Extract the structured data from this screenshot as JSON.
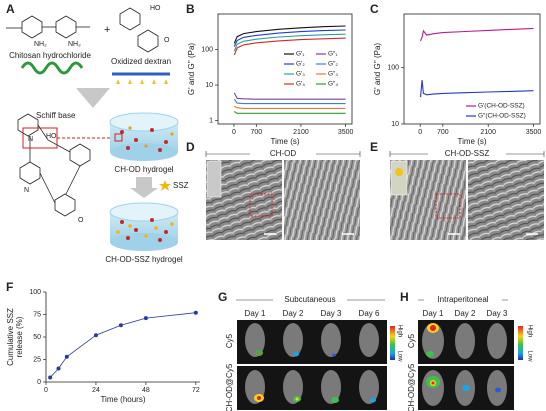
{
  "panel_labels": [
    "A",
    "B",
    "C",
    "D",
    "E",
    "F",
    "G",
    "H"
  ],
  "panel_a": {
    "chitosan": "Chitosan hydrochloride",
    "plus": "+",
    "dextran": "Oxidized dextran",
    "schiff_base": "Schiff base",
    "hydrogel": "CH-OD hydrogel",
    "drug": "SSZ",
    "drug_hydrogel": "CH-OD-SSZ hydrogel",
    "atoms": [
      "NH₂",
      "NH₂",
      "HO",
      "O",
      "N",
      "HO",
      "N",
      "O"
    ]
  },
  "chart_data": [
    {
      "type": "line",
      "ylabel": "G' and G'' (Pa)",
      "xlabel": "Time (s)",
      "log_y": true,
      "frame": true,
      "legend": "center right",
      "x": [
        10,
        100,
        300,
        700,
        1400,
        2100,
        2800,
        3500
      ],
      "xlim": [
        -500,
        3700
      ],
      "xticks": [
        0,
        700,
        2100,
        3500
      ],
      "ylim": [
        0.8,
        1000
      ],
      "yticks": [
        1,
        10,
        100
      ],
      "series": [
        {
          "name": "G′₁",
          "color": "#111111",
          "values": [
            150,
            230,
            280,
            320,
            370,
            410,
            440,
            460
          ]
        },
        {
          "name": "G′₂",
          "color": "#1f3fd1",
          "values": [
            120,
            180,
            220,
            250,
            290,
            320,
            340,
            355
          ]
        },
        {
          "name": "G′₃",
          "color": "#2aa198",
          "values": [
            90,
            140,
            170,
            195,
            225,
            245,
            260,
            270
          ]
        },
        {
          "name": "G′₄",
          "color": "#d62728",
          "values": [
            70,
            110,
            135,
            155,
            175,
            190,
            200,
            210
          ]
        },
        {
          "name": "G″₁",
          "color": "#7b3fa0",
          "values": [
            6,
            4.2,
            4.1,
            4,
            4,
            4,
            4,
            4
          ]
        },
        {
          "name": "G″₂",
          "color": "#3b7dd8",
          "values": [
            4,
            3.1,
            3,
            3,
            3,
            3,
            3,
            3
          ]
        },
        {
          "name": "G″₃",
          "color": "#e07b39",
          "values": [
            2.5,
            2.3,
            2.2,
            2.2,
            2.2,
            2.2,
            2.2,
            2.2
          ]
        },
        {
          "name": "G″₄",
          "color": "#2ca02c",
          "values": [
            1.8,
            1.6,
            1.6,
            1.6,
            1.6,
            1.6,
            1.6,
            1.6
          ]
        }
      ]
    },
    {
      "type": "line",
      "ylabel": "G' and G'' (Pa)",
      "xlabel": "Time (s)",
      "log_y": true,
      "frame": true,
      "legend": "lower right",
      "x": [
        10,
        60,
        100,
        200,
        400,
        700,
        1400,
        2100,
        2800,
        3500
      ],
      "xlim": [
        -500,
        3700
      ],
      "xticks": [
        0,
        700,
        2100,
        3500
      ],
      "ylim": [
        10,
        900
      ],
      "yticks": [
        10,
        100
      ],
      "series": [
        {
          "name": "G′(CH-OD-SSZ)",
          "color": "#c2188b",
          "values": [
            300,
            350,
            450,
            380,
            400,
            420,
            440,
            460,
            480,
            500
          ]
        },
        {
          "name": "G″(CH-OD-SSZ)",
          "color": "#2438c9",
          "values": [
            30,
            60,
            35,
            33,
            34,
            35,
            36,
            37,
            38,
            39
          ]
        }
      ]
    },
    {
      "type": "line",
      "ylabel": [
        "Cumulative SSZ",
        "release (%)"
      ],
      "xlabel": "Time (hours)",
      "markers": true,
      "frame": false,
      "x": [
        2,
        6,
        10,
        24,
        36,
        48,
        72
      ],
      "values": [
        5,
        15,
        28,
        52,
        63,
        71,
        77
      ],
      "color": "#2a3a9a",
      "xlim": [
        0,
        74
      ],
      "xticks": [
        0,
        24,
        48,
        72
      ],
      "ylim": [
        0,
        100
      ],
      "yticks": [
        0,
        25,
        50,
        75,
        100
      ]
    }
  ],
  "panel_d": {
    "label": "CH-OD"
  },
  "panel_e": {
    "label": "CH-OD-SSZ"
  },
  "panel_g": {
    "title": "Subcutaneous",
    "days": [
      "Day 1",
      "Day 2",
      "Day 3",
      "Day 6"
    ],
    "rows": [
      "Cy5",
      "CH-OD@Cy5"
    ],
    "scale": [
      "High",
      "Low"
    ]
  },
  "panel_h": {
    "title": "Intraperitoneal",
    "days": [
      "Day 1",
      "Day 2",
      "Day 3"
    ],
    "rows": [
      "Cy5",
      "CH-OD@Cy5"
    ],
    "scale": [
      "High",
      "Low"
    ]
  }
}
